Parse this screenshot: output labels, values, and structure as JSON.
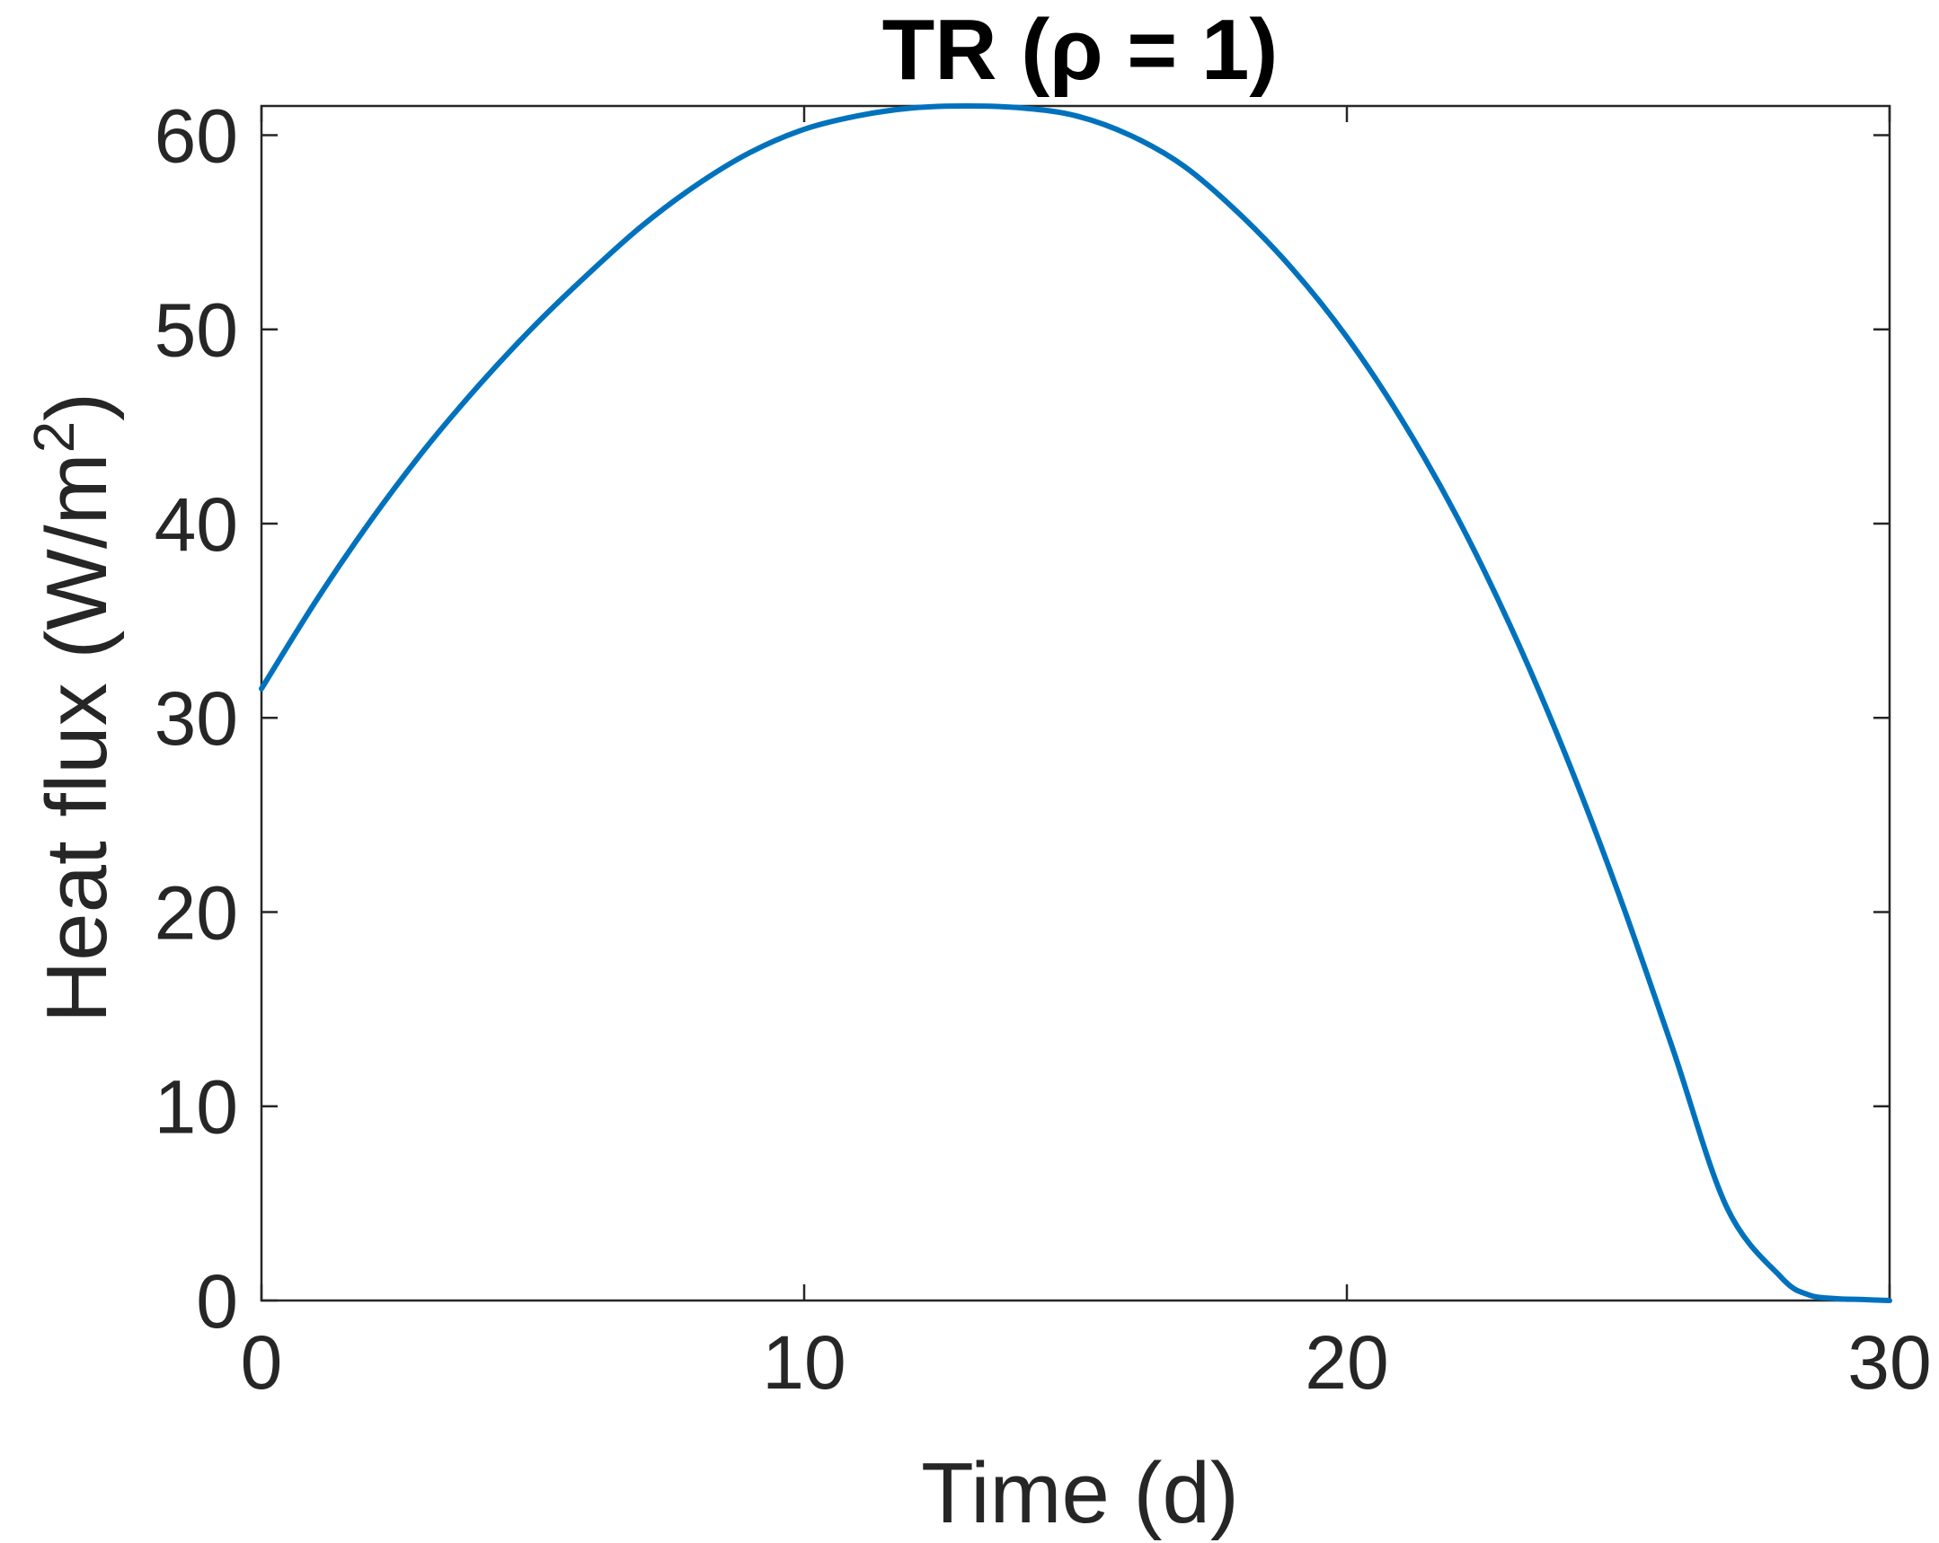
{
  "chart_data": {
    "type": "line",
    "title": "TR (ρ = 1)",
    "xlabel": "Time (d)",
    "ylabel": "Heat flux (W/m",
    "ylabel_superscript": "2",
    "ylabel_suffix": ")",
    "xlim": [
      0,
      30
    ],
    "ylim": [
      0,
      61.5
    ],
    "xticks": [
      0,
      10,
      20,
      30
    ],
    "yticks": [
      0,
      10,
      20,
      30,
      40,
      50,
      60
    ],
    "xtick_labels": [
      "0",
      "10",
      "20",
      "30"
    ],
    "ytick_labels": [
      "0",
      "10",
      "20",
      "30",
      "40",
      "50",
      "60"
    ],
    "grid": false,
    "box": true,
    "series": [
      {
        "color": "#0072BD",
        "x": [
          0,
          1,
          2,
          3,
          4,
          5,
          6,
          7,
          8,
          9,
          10,
          11,
          12,
          13,
          14,
          15,
          16,
          17,
          18,
          19,
          20,
          21,
          22,
          23,
          24,
          25,
          26,
          27,
          28,
          28.5,
          29,
          29.5,
          30
        ],
        "y": [
          31.5,
          36.0,
          40.1,
          43.8,
          47.1,
          50.1,
          52.8,
          55.3,
          57.4,
          59.1,
          60.3,
          61.0,
          61.4,
          61.5,
          61.4,
          61.0,
          60.0,
          58.4,
          56.0,
          53.1,
          49.6,
          45.4,
          40.5,
          34.8,
          28.3,
          21.0,
          13.0,
          4.8,
          1.2,
          0.3,
          0.1,
          0.05,
          0.0
        ]
      }
    ]
  }
}
